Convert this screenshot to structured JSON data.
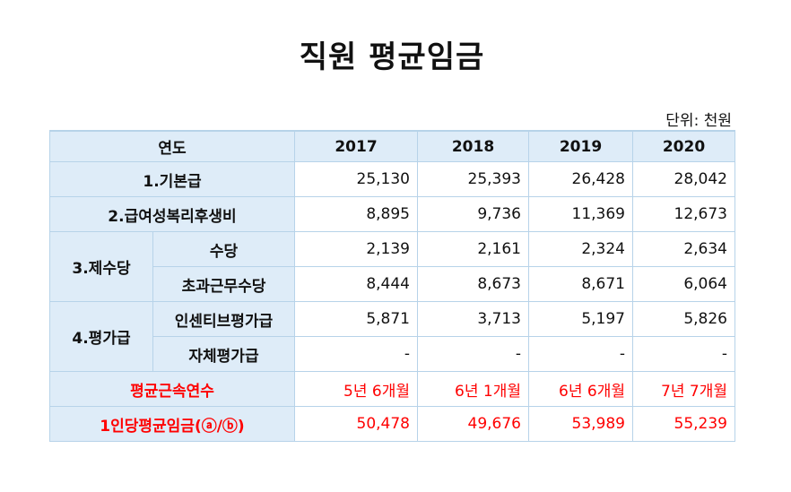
{
  "title": "직원 평균임금",
  "unit": "단위: 천원",
  "table": {
    "header_label": "연도",
    "years": [
      "2017",
      "2018",
      "2019",
      "2020"
    ],
    "rows": [
      {
        "label": "1.기본급",
        "values": [
          "25,130",
          "25,393",
          "26,428",
          "28,042"
        ]
      },
      {
        "label": "2.급여성복리후생비",
        "values": [
          "8,895",
          "9,736",
          "11,369",
          "12,673"
        ]
      },
      {
        "group": "3.제수당",
        "label": "수당",
        "values": [
          "2,139",
          "2,161",
          "2,324",
          "2,634"
        ]
      },
      {
        "label": "초과근무수당",
        "values": [
          "8,444",
          "8,673",
          "8,671",
          "6,064"
        ]
      },
      {
        "group": "4.평가급",
        "label": "인센티브평가급",
        "values": [
          "5,871",
          "3,713",
          "5,197",
          "5,826"
        ]
      },
      {
        "label": "자체평가급",
        "values": [
          "-",
          "-",
          "-",
          "-"
        ]
      },
      {
        "label": "평균근속연수",
        "values": [
          "5년 6개월",
          "6년 1개월",
          "6년 6개월",
          "7년 7개월"
        ]
      },
      {
        "label": "1인당평균임금(ⓐ/ⓑ)",
        "values": [
          "50,478",
          "49,676",
          "53,989",
          "55,239"
        ]
      }
    ]
  },
  "colors": {
    "header_bg": "#deecf8",
    "border": "#b7d3e9",
    "highlight_text": "#ff0000"
  }
}
